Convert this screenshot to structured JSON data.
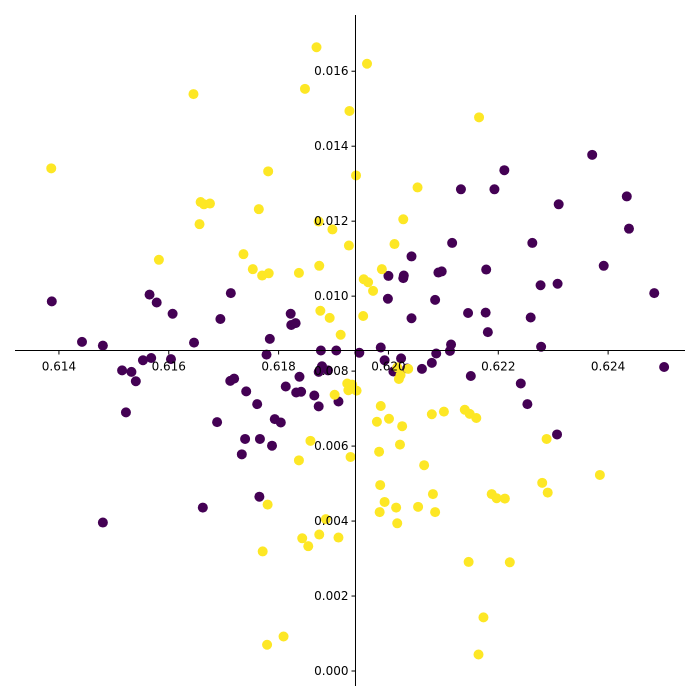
{
  "chart_data": {
    "type": "scatter",
    "title": "",
    "xlabel": "",
    "ylabel": "",
    "xlim": [
      0.6132,
      0.6254
    ],
    "ylim": [
      -0.0004,
      0.0175
    ],
    "grid": false,
    "x_ticks": [
      "0.614",
      "0.616",
      "0.618",
      "0.620",
      "0.622",
      "0.624"
    ],
    "x_tick_values": [
      0.614,
      0.616,
      0.618,
      0.62,
      0.622,
      0.624
    ],
    "y_ticks": [
      "0.000",
      "0.002",
      "0.004",
      "0.006",
      "0.008",
      "0.010",
      "0.012",
      "0.014",
      "0.016"
    ],
    "y_tick_values": [
      0.0,
      0.002,
      0.004,
      0.006,
      0.008,
      0.01,
      0.012,
      0.014,
      0.016
    ],
    "axis_crossing": {
      "x": 0.6194,
      "y": 0.00855
    },
    "series": [
      {
        "color": "#440154",
        "points": [
          [
            0.61387,
            0.00986
          ],
          [
            0.61442,
            0.00878
          ],
          [
            0.6148,
            0.00868
          ],
          [
            0.61515,
            0.00802
          ],
          [
            0.61522,
            0.0069
          ],
          [
            0.61532,
            0.00798
          ],
          [
            0.6154,
            0.00773
          ],
          [
            0.61553,
            0.00829
          ],
          [
            0.61565,
            0.01004
          ],
          [
            0.61568,
            0.00835
          ],
          [
            0.61578,
            0.00983
          ],
          [
            0.61604,
            0.00832
          ],
          [
            0.61607,
            0.00953
          ],
          [
            0.61646,
            0.00876
          ],
          [
            0.61662,
            0.00436
          ],
          [
            0.61688,
            0.00664
          ],
          [
            0.61694,
            0.00939
          ],
          [
            0.61713,
            0.01008
          ],
          [
            0.61712,
            0.00774
          ],
          [
            0.61719,
            0.0078
          ],
          [
            0.61733,
            0.00578
          ],
          [
            0.61739,
            0.00619
          ],
          [
            0.61741,
            0.00746
          ],
          [
            0.61761,
            0.00712
          ],
          [
            0.61765,
            0.00465
          ],
          [
            0.61766,
            0.00619
          ],
          [
            0.61778,
            0.00844
          ],
          [
            0.61784,
            0.00886
          ],
          [
            0.61788,
            0.00601
          ],
          [
            0.61793,
            0.00672
          ],
          [
            0.61804,
            0.00663
          ],
          [
            0.61813,
            0.00759
          ],
          [
            0.61822,
            0.00953
          ],
          [
            0.61823,
            0.00923
          ],
          [
            0.61832,
            0.00743
          ],
          [
            0.61831,
            0.00928
          ],
          [
            0.61838,
            0.00785
          ],
          [
            0.61841,
            0.00745
          ],
          [
            0.61865,
            0.00735
          ],
          [
            0.61873,
            0.00706
          ],
          [
            0.61873,
            0.00798
          ],
          [
            0.61879,
            0.00813
          ],
          [
            0.61877,
            0.00855
          ],
          [
            0.6189,
            0.00802
          ],
          [
            0.61905,
            0.00855
          ],
          [
            0.61909,
            0.00719
          ],
          [
            0.61947,
            0.00849
          ],
          [
            0.61986,
            0.00863
          ],
          [
            0.61993,
            0.00829
          ],
          [
            0.61999,
            0.00993
          ],
          [
            0.62,
            0.01054
          ],
          [
            0.62009,
            0.00799
          ],
          [
            0.62023,
            0.00834
          ],
          [
            0.62027,
            0.01048
          ],
          [
            0.62028,
            0.01055
          ],
          [
            0.62034,
            0.00807
          ],
          [
            0.62042,
            0.00941
          ],
          [
            0.62042,
            0.01106
          ],
          [
            0.62061,
            0.00806
          ],
          [
            0.62079,
            0.00822
          ],
          [
            0.62085,
            0.0099
          ],
          [
            0.62087,
            0.00847
          ],
          [
            0.62091,
            0.01063
          ],
          [
            0.62097,
            0.01066
          ],
          [
            0.62112,
            0.00854
          ],
          [
            0.62114,
            0.00871
          ],
          [
            0.62116,
            0.01142
          ],
          [
            0.62132,
            0.01285
          ],
          [
            0.62145,
            0.00955
          ],
          [
            0.6215,
            0.00787
          ],
          [
            0.62177,
            0.00956
          ],
          [
            0.62178,
            0.01071
          ],
          [
            0.62181,
            0.00904
          ],
          [
            0.62193,
            0.01285
          ],
          [
            0.62211,
            0.01336
          ],
          [
            0.62241,
            0.00767
          ],
          [
            0.62253,
            0.00712
          ],
          [
            0.62259,
            0.00943
          ],
          [
            0.62262,
            0.01142
          ],
          [
            0.62277,
            0.01029
          ],
          [
            0.62278,
            0.00865
          ],
          [
            0.62307,
            0.00631
          ],
          [
            0.62308,
            0.01033
          ],
          [
            0.6231,
            0.01245
          ],
          [
            0.62371,
            0.01377
          ],
          [
            0.62392,
            0.01081
          ],
          [
            0.62434,
            0.01266
          ],
          [
            0.62438,
            0.0118
          ],
          [
            0.62484,
            0.01008
          ],
          [
            0.62502,
            0.00811
          ],
          [
            0.6148,
            0.00396
          ]
        ]
      },
      {
        "color": "#fde725",
        "points": [
          [
            0.61386,
            0.01341
          ],
          [
            0.61582,
            0.01097
          ],
          [
            0.61645,
            0.01539
          ],
          [
            0.61656,
            0.01192
          ],
          [
            0.61658,
            0.01251
          ],
          [
            0.61664,
            0.01245
          ],
          [
            0.61675,
            0.01247
          ],
          [
            0.61736,
            0.01112
          ],
          [
            0.61753,
            0.01072
          ],
          [
            0.61764,
            0.01232
          ],
          [
            0.61771,
            0.00319
          ],
          [
            0.6177,
            0.01055
          ],
          [
            0.61779,
            0.0007
          ],
          [
            0.6178,
            0.00444
          ],
          [
            0.61781,
            0.01333
          ],
          [
            0.61782,
            0.01061
          ],
          [
            0.61809,
            0.00092
          ],
          [
            0.61837,
            0.01062
          ],
          [
            0.61837,
            0.00562
          ],
          [
            0.61843,
            0.00354
          ],
          [
            0.61848,
            0.01553
          ],
          [
            0.61854,
            0.00333
          ],
          [
            0.61858,
            0.00614
          ],
          [
            0.61869,
            0.01664
          ],
          [
            0.61873,
            0.01199
          ],
          [
            0.61874,
            0.00364
          ],
          [
            0.61874,
            0.01081
          ],
          [
            0.61876,
            0.00961
          ],
          [
            0.61886,
            0.00405
          ],
          [
            0.61893,
            0.00942
          ],
          [
            0.61898,
            0.01178
          ],
          [
            0.61902,
            0.00737
          ],
          [
            0.61909,
            0.00356
          ],
          [
            0.61913,
            0.00897
          ],
          [
            0.61925,
            0.00767
          ],
          [
            0.61927,
            0.00749
          ],
          [
            0.61928,
            0.01135
          ],
          [
            0.61929,
            0.01494
          ],
          [
            0.61931,
            0.00571
          ],
          [
            0.61934,
            0.00764
          ],
          [
            0.61935,
            0.00753
          ],
          [
            0.61941,
            0.01322
          ],
          [
            0.61942,
            0.00748
          ],
          [
            0.61954,
            0.00947
          ],
          [
            0.61955,
            0.01045
          ],
          [
            0.61961,
            0.0162
          ],
          [
            0.61963,
            0.01037
          ],
          [
            0.61972,
            0.01014
          ],
          [
            0.61979,
            0.00665
          ],
          [
            0.61983,
            0.00585
          ],
          [
            0.61984,
            0.00424
          ],
          [
            0.61985,
            0.00496
          ],
          [
            0.61986,
            0.00707
          ],
          [
            0.61988,
            0.01072
          ],
          [
            0.61993,
            0.00451
          ],
          [
            0.62001,
            0.00673
          ],
          [
            0.62011,
            0.01139
          ],
          [
            0.62014,
            0.00436
          ],
          [
            0.62016,
            0.0081
          ],
          [
            0.62016,
            0.00394
          ],
          [
            0.62019,
            0.00779
          ],
          [
            0.62021,
            0.00604
          ],
          [
            0.62022,
            0.00789
          ],
          [
            0.62025,
            0.00653
          ],
          [
            0.62027,
            0.01205
          ],
          [
            0.62036,
            0.00806
          ],
          [
            0.62053,
            0.0129
          ],
          [
            0.62054,
            0.00438
          ],
          [
            0.62065,
            0.00549
          ],
          [
            0.62079,
            0.00685
          ],
          [
            0.62081,
            0.00472
          ],
          [
            0.62085,
            0.00424
          ],
          [
            0.62101,
            0.00692
          ],
          [
            0.62139,
            0.00697
          ],
          [
            0.62146,
            0.00291
          ],
          [
            0.62148,
            0.00686
          ],
          [
            0.6216,
            0.00675
          ],
          [
            0.62164,
            0.00044
          ],
          [
            0.62165,
            0.01477
          ],
          [
            0.62173,
            0.00143
          ],
          [
            0.62188,
            0.00472
          ],
          [
            0.62197,
            0.00461
          ],
          [
            0.62212,
            0.0046
          ],
          [
            0.62221,
            0.0029
          ],
          [
            0.6228,
            0.00502
          ],
          [
            0.62288,
            0.00619
          ],
          [
            0.6229,
            0.00476
          ],
          [
            0.62385,
            0.00523
          ]
        ]
      }
    ]
  }
}
